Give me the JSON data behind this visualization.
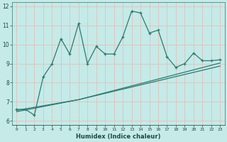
{
  "xlabel": "Humidex (Indice chaleur)",
  "background_color": "#c5eae8",
  "grid_color": "#b0d8d5",
  "line_color": "#2a7a70",
  "x_data": [
    0,
    1,
    2,
    3,
    4,
    5,
    6,
    7,
    8,
    9,
    10,
    11,
    12,
    13,
    14,
    15,
    16,
    17,
    18,
    19,
    20,
    21,
    22,
    23
  ],
  "y_main": [
    6.6,
    6.6,
    6.3,
    8.3,
    9.0,
    10.3,
    9.5,
    11.1,
    9.0,
    9.9,
    9.5,
    9.5,
    10.4,
    11.75,
    11.65,
    10.6,
    10.75,
    9.35,
    8.8,
    9.0,
    9.55,
    9.15,
    9.15,
    9.2
  ],
  "y_reg1": [
    6.55,
    6.63,
    6.71,
    6.79,
    6.87,
    6.95,
    7.03,
    7.11,
    7.22,
    7.33,
    7.44,
    7.55,
    7.66,
    7.77,
    7.88,
    7.99,
    8.1,
    8.21,
    8.32,
    8.43,
    8.54,
    8.65,
    8.76,
    8.87
  ],
  "y_reg2": [
    6.48,
    6.57,
    6.66,
    6.75,
    6.84,
    6.93,
    7.02,
    7.11,
    7.23,
    7.35,
    7.47,
    7.59,
    7.71,
    7.83,
    7.95,
    8.07,
    8.19,
    8.31,
    8.43,
    8.55,
    8.67,
    8.79,
    8.91,
    9.03
  ],
  "ylim": [
    5.8,
    12.2
  ],
  "xlim": [
    -0.5,
    23.5
  ],
  "yticks": [
    6,
    7,
    8,
    9,
    10,
    11,
    12
  ],
  "xtick_labels": [
    "0",
    "1",
    "2",
    "3",
    "4",
    "5",
    "6",
    "7",
    "8",
    "9",
    "10",
    "11",
    "12",
    "13",
    "14",
    "15",
    "16",
    "17",
    "18",
    "19",
    "20",
    "21",
    "22",
    "23"
  ]
}
